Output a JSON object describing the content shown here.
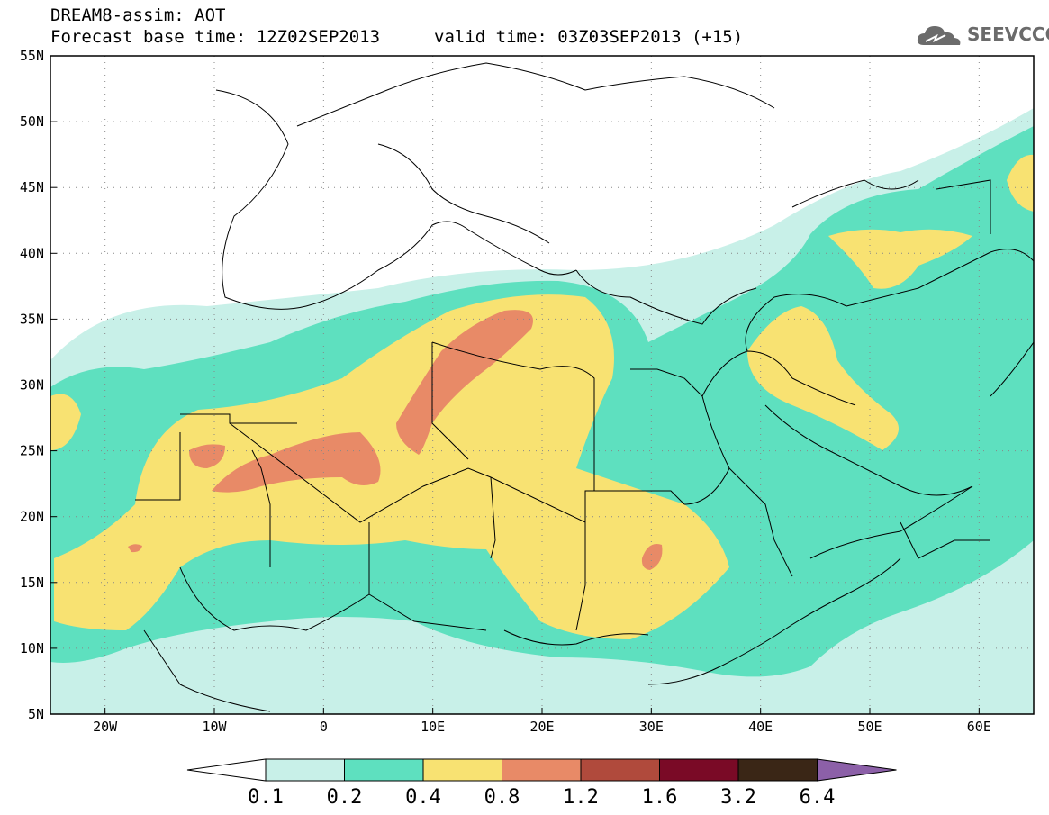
{
  "header": {
    "line1": "DREAM8-assim: AOT",
    "line2": "Forecast base time: 12Z02SEP2013",
    "line3": "valid time: 03Z03SEP2013 (+15)"
  },
  "logo": {
    "text": "SEEVCCC",
    "icon": "cloud-icon"
  },
  "map": {
    "lat_labels": [
      "55N",
      "50N",
      "45N",
      "40N",
      "35N",
      "30N",
      "25N",
      "20N",
      "15N",
      "10N",
      "5N"
    ],
    "lon_labels": [
      "20W",
      "10W",
      "0",
      "10E",
      "20E",
      "30E",
      "40E",
      "50E",
      "60E"
    ],
    "lat_range": [
      5,
      55
    ],
    "lon_range": [
      -25,
      65
    ],
    "grid": "dotted"
  },
  "colorbar": {
    "labels": [
      "0.1",
      "0.2",
      "0.4",
      "0.8",
      "1.2",
      "1.6",
      "3.2",
      "6.4"
    ],
    "colors": [
      "#ffffff",
      "#c8f0e8",
      "#5ee0bf",
      "#f8e272",
      "#e88a67",
      "#b04a3c",
      "#7a0a26",
      "#3a2616",
      "#8c60a8"
    ]
  }
}
